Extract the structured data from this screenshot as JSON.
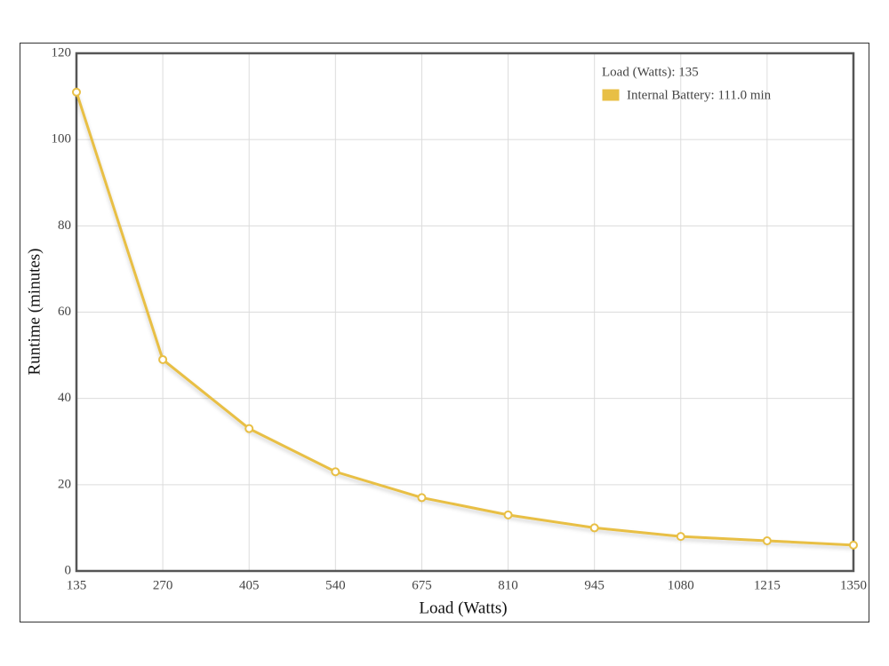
{
  "chart_data": {
    "type": "line",
    "x_label": "Load (Watts)",
    "y_label": "Runtime (minutes)",
    "x": [
      135,
      270,
      405,
      540,
      675,
      810,
      945,
      1080,
      1215,
      1350
    ],
    "series": [
      {
        "name": "Internal Battery",
        "color": "#e8bf45",
        "values": [
          111,
          49,
          33,
          23,
          17,
          13,
          10,
          8,
          7,
          6
        ]
      }
    ],
    "xlim": [
      135,
      1350
    ],
    "xticks": [
      135,
      270,
      405,
      540,
      675,
      810,
      945,
      1080,
      1215,
      1350
    ],
    "ylim": [
      0,
      120
    ],
    "yticks": [
      0,
      20,
      40,
      60,
      80,
      100,
      120
    ],
    "grid": true,
    "tooltip": {
      "title": "Load (Watts): 135",
      "label": "Internal Battery: 111.0 min"
    }
  }
}
